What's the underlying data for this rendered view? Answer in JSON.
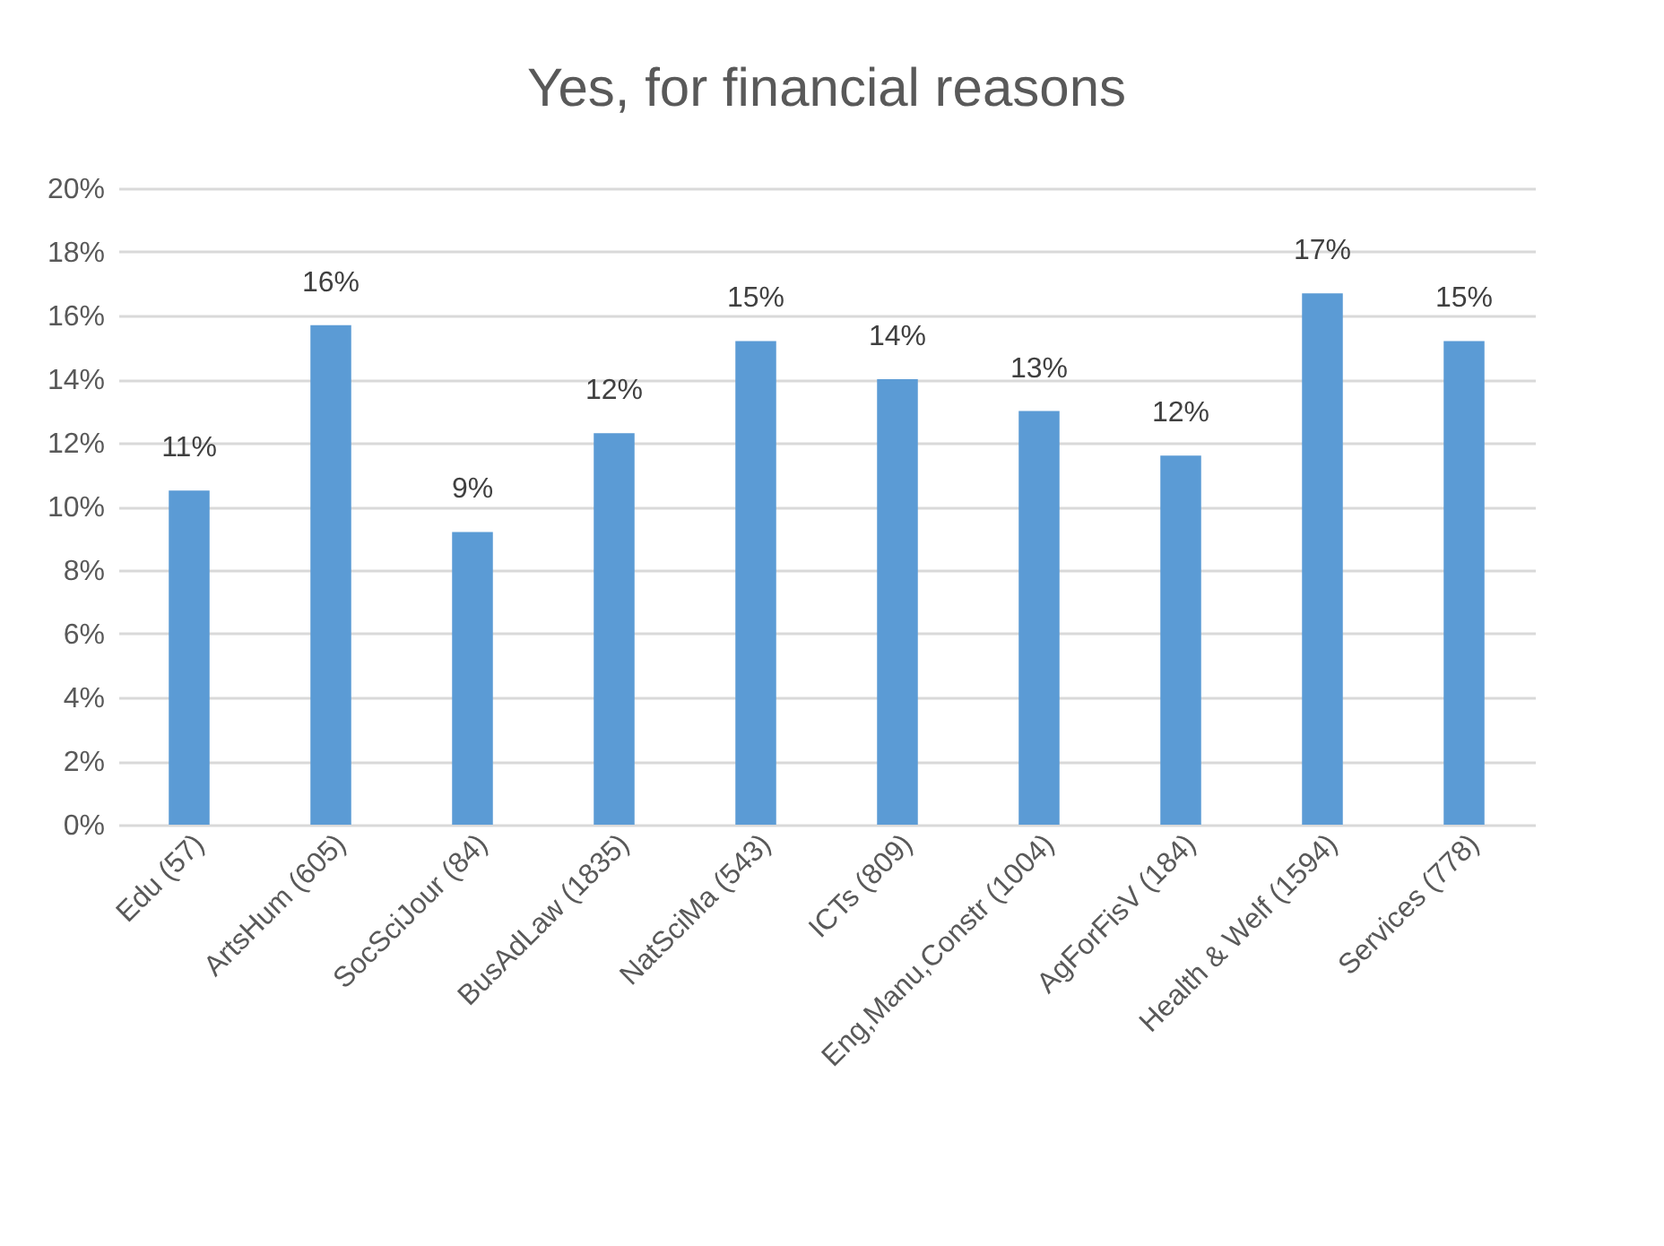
{
  "chart_data": {
    "type": "bar",
    "title": "Yes, for financial reasons",
    "categories": [
      "Edu (57)",
      "ArtsHum (605)",
      "SocSciJour (84)",
      "BusAdLaw (1835)",
      "NatSciMa (543)",
      "ICTs (809)",
      "Eng,Manu,Constr (1004)",
      "AgForFisV (184)",
      "Health & Welf (1594)",
      "Services (778)"
    ],
    "values": [
      10.5,
      15.7,
      9.2,
      12.3,
      15.2,
      14.0,
      13.0,
      11.6,
      16.7,
      15.2
    ],
    "value_labels": [
      "11%",
      "16%",
      "9%",
      "12%",
      "15%",
      "14%",
      "13%",
      "12%",
      "17%",
      "15%"
    ],
    "color": "#5b9bd5",
    "ylim": [
      0,
      20
    ],
    "yticks": [
      {
        "value": 0,
        "label": "0%"
      },
      {
        "value": 2,
        "label": "2%"
      },
      {
        "value": 4,
        "label": "4%"
      },
      {
        "value": 6,
        "label": "6%"
      },
      {
        "value": 8,
        "label": "8%"
      },
      {
        "value": 10,
        "label": "10%"
      },
      {
        "value": 12,
        "label": "12%"
      },
      {
        "value": 14,
        "label": "14%"
      },
      {
        "value": 16,
        "label": "16%"
      },
      {
        "value": 18,
        "label": "18%"
      },
      {
        "value": 20,
        "label": "20%"
      }
    ],
    "grid": "y"
  }
}
